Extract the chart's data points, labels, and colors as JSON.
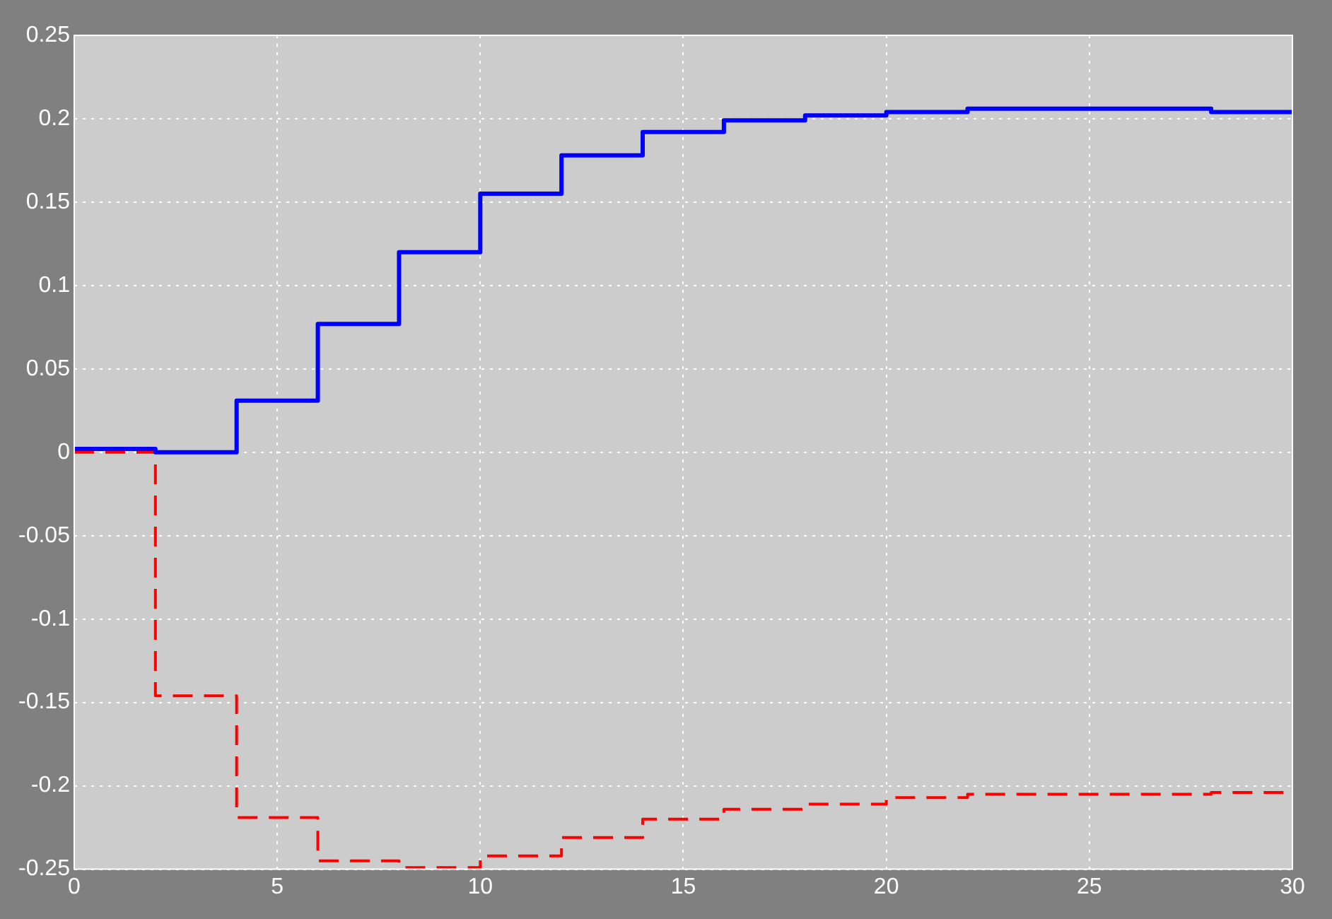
{
  "chart_data": {
    "type": "step",
    "x": [
      0,
      2,
      4,
      6,
      8,
      10,
      12,
      14,
      16,
      18,
      20,
      22,
      24,
      26,
      28,
      30
    ],
    "series": [
      {
        "color": "#0000ff",
        "line_style": "solid",
        "values": [
          0.002,
          0,
          0.031,
          0.077,
          0.12,
          0.155,
          0.178,
          0.192,
          0.199,
          0.202,
          0.204,
          0.206,
          0.206,
          0.206,
          0.204,
          0.204
        ]
      },
      {
        "color": "#ff0000",
        "line_style": "dashed",
        "values": [
          0,
          -0.146,
          -0.219,
          -0.245,
          -0.249,
          -0.242,
          -0.231,
          -0.22,
          -0.214,
          -0.211,
          -0.207,
          -0.205,
          -0.205,
          -0.205,
          -0.204,
          -0.204
        ]
      }
    ],
    "xlim": [
      0,
      30
    ],
    "xticks": [
      0,
      5,
      10,
      15,
      20,
      25,
      30
    ],
    "ylim": [
      -0.25,
      0.25
    ],
    "yticks": [
      -0.25,
      -0.2,
      -0.15,
      -0.1,
      -0.05,
      0,
      0.05,
      0.1,
      0.15,
      0.2,
      0.25
    ],
    "grid": true,
    "legend": false
  }
}
